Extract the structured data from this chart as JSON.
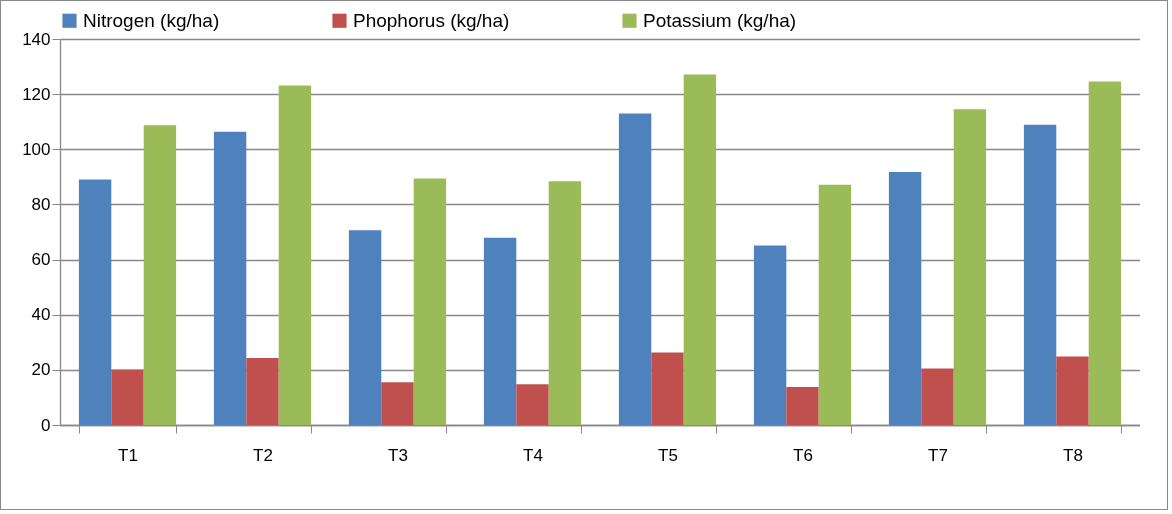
{
  "chart_data": {
    "type": "bar",
    "categories": [
      "T1",
      "T2",
      "T3",
      "T4",
      "T5",
      "T6",
      "T7",
      "T8"
    ],
    "series": [
      {
        "name": "Nitrogen (kg/ha)",
        "color": "#4f81bd",
        "values": [
          89.0,
          106.4,
          70.6,
          67.9,
          113.0,
          65.1,
          91.8,
          108.9
        ]
      },
      {
        "name": "Phophorus (kg/ha)",
        "color": "#c0504d",
        "values": [
          20.1,
          24.3,
          15.5,
          14.8,
          26.3,
          13.8,
          20.5,
          24.8
        ]
      },
      {
        "name": "Potassium (kg/ha)",
        "color": "#9bbb59",
        "values": [
          108.7,
          123.1,
          89.4,
          88.4,
          127.1,
          87.1,
          114.5,
          124.6
        ]
      }
    ],
    "ylim": [
      0,
      140
    ],
    "yticks": [
      0,
      20,
      40,
      60,
      80,
      100,
      120,
      140
    ],
    "grid": "y",
    "legend": "top"
  }
}
